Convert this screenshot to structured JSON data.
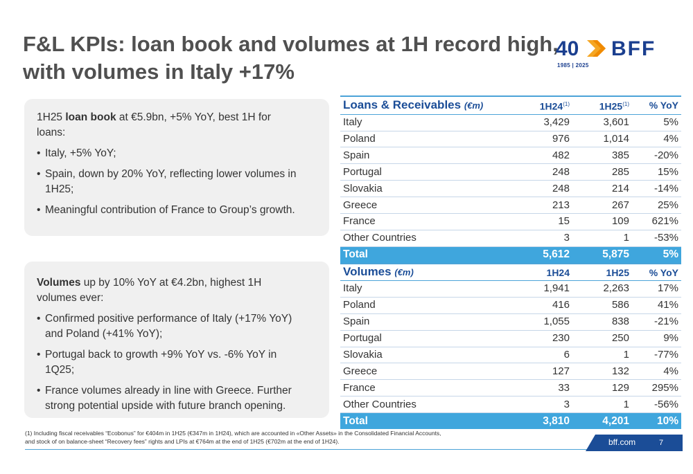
{
  "title": {
    "line1": "F&L KPIs: loan book and volumes at 1H record high,",
    "line2": "with volumes in Italy +17%"
  },
  "logo": {
    "number": "40",
    "brand": "BFF",
    "years": "1985 | 2025",
    "colors": {
      "blue": "#1b3f8f",
      "orange": "#f5a623"
    }
  },
  "box1": {
    "lead_pre": "1H25 ",
    "lead_bold": "loan book",
    "lead_post": " at €5.9bn, +5% YoY, best 1H for loans:",
    "bullets": [
      "Italy, +5% YoY;",
      "Spain, down by 20% YoY, reflecting lower volumes in 1H25;",
      "Meaningful contribution of France to Group’s growth."
    ]
  },
  "box2": {
    "lead_bold": "Volumes",
    "lead_post": " up by 10% YoY at €4.2bn, highest 1H volumes ever:",
    "bullets": [
      "Confirmed positive performance of Italy (+17% YoY) and Poland (+41% YoY);",
      "Portugal back to growth +9% YoY vs. -6% YoY in 1Q25;",
      "France volumes already in line with Greece. Further strong potential upside with future branch opening."
    ]
  },
  "loans_table": {
    "label": "Loans & Receivables",
    "unit": "(€m)",
    "col1": "1H24",
    "col1_note": "(1)",
    "col2": "1H25",
    "col2_note": "(1)",
    "col3": "% YoY",
    "rows": [
      {
        "country": "Italy",
        "h24": "3,429",
        "h25": "3,601",
        "yoy": "5%"
      },
      {
        "country": "Poland",
        "h24": "976",
        "h25": "1,014",
        "yoy": "4%"
      },
      {
        "country": "Spain",
        "h24": "482",
        "h25": "385",
        "yoy": "-20%"
      },
      {
        "country": "Portugal",
        "h24": "248",
        "h25": "285",
        "yoy": "15%"
      },
      {
        "country": "Slovakia",
        "h24": "248",
        "h25": "214",
        "yoy": "-14%"
      },
      {
        "country": "Greece",
        "h24": "213",
        "h25": "267",
        "yoy": "25%"
      },
      {
        "country": "France",
        "h24": "15",
        "h25": "109",
        "yoy": "621%"
      },
      {
        "country": "Other Countries",
        "h24": "3",
        "h25": "1",
        "yoy": "-53%"
      }
    ],
    "total": {
      "label": "Total",
      "h24": "5,612",
      "h25": "5,875",
      "yoy": "5%"
    }
  },
  "volumes_table": {
    "label": "Volumes",
    "unit": "(€m)",
    "col1": "1H24",
    "col2": "1H25",
    "col3": "% YoY",
    "rows": [
      {
        "country": "Italy",
        "h24": "1,941",
        "h25": "2,263",
        "yoy": "17%"
      },
      {
        "country": "Poland",
        "h24": "416",
        "h25": "586",
        "yoy": "41%"
      },
      {
        "country": "Spain",
        "h24": "1,055",
        "h25": "838",
        "yoy": "-21%"
      },
      {
        "country": "Portugal",
        "h24": "230",
        "h25": "250",
        "yoy": "9%"
      },
      {
        "country": "Slovakia",
        "h24": "6",
        "h25": "1",
        "yoy": "-77%"
      },
      {
        "country": "Greece",
        "h24": "127",
        "h25": "132",
        "yoy": "4%"
      },
      {
        "country": "France",
        "h24": "33",
        "h25": "129",
        "yoy": "295%"
      },
      {
        "country": "Other Countries",
        "h24": "3",
        "h25": "1",
        "yoy": "-56%"
      }
    ],
    "total": {
      "label": "Total",
      "h24": "3,810",
      "h25": "4,201",
      "yoy": "10%"
    }
  },
  "footnote": {
    "line1": "(1) Including fiscal receivables “Ecobonus” for €404m in 1H25 (€347m in 1H24), which are accounted in «Other Assets» in the Consolidated Financial Accounts,",
    "line2": "and stock of on balance-sheet “Recovery fees” rights and LPIs at €764m at the end of 1H25 (€702m at the end of 1H24)."
  },
  "footer": {
    "url": "bff.com",
    "page": "7",
    "bar_color": "#1b4d97"
  }
}
